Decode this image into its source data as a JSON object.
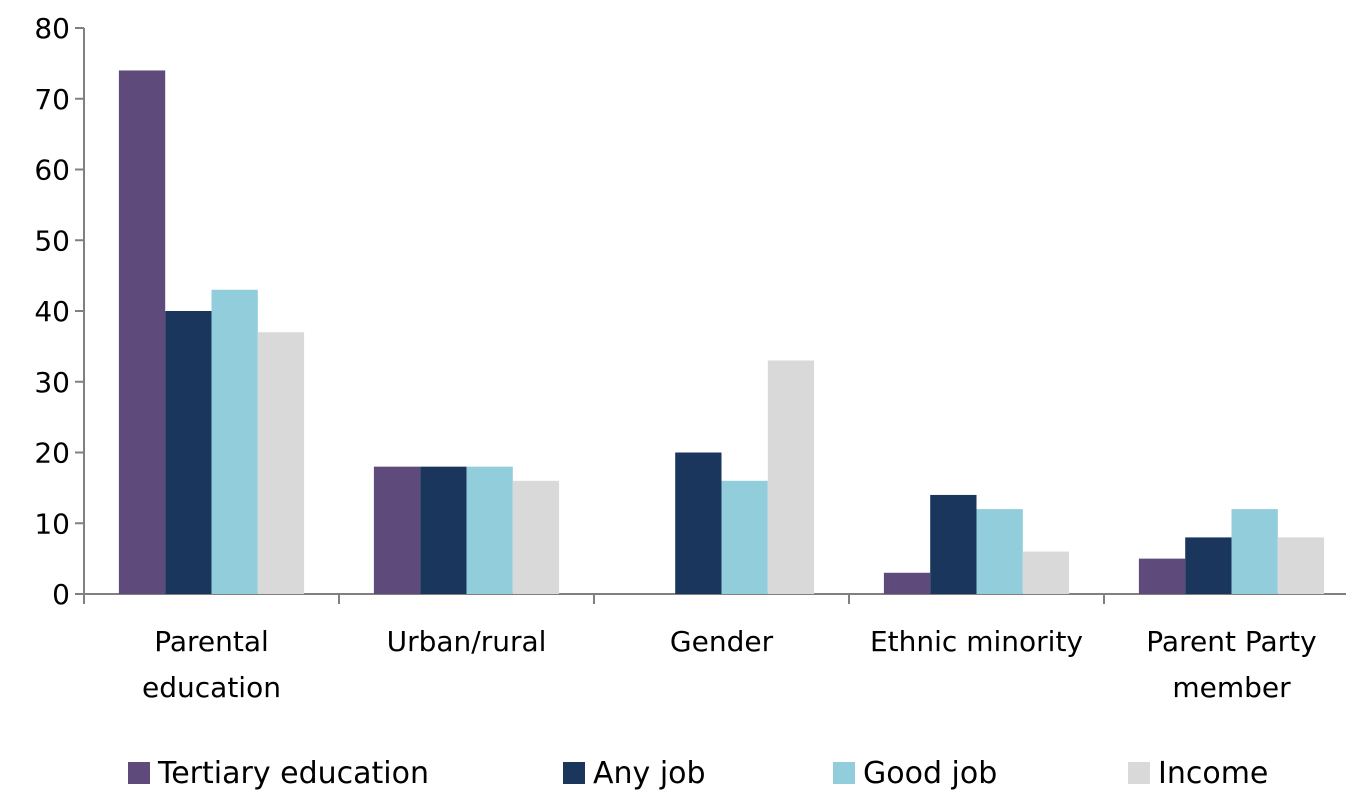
{
  "chart_data": {
    "type": "bar",
    "title": "",
    "xlabel": "",
    "ylabel": "",
    "ylim": [
      0,
      80
    ],
    "yticks": [
      "0",
      "10",
      "20",
      "30",
      "40",
      "50",
      "60",
      "70",
      "80"
    ],
    "grid": false,
    "legend_position": "bottom",
    "categories": [
      [
        "Parental",
        "education"
      ],
      [
        "Urban/rural"
      ],
      [
        "Gender"
      ],
      [
        "Ethnic minority"
      ],
      [
        "Parent Party",
        "member"
      ]
    ],
    "series": [
      {
        "name": "Tertiary education",
        "color": "#5f4b7b",
        "values": [
          74,
          18,
          0,
          3,
          5
        ]
      },
      {
        "name": "Any job",
        "color": "#1b365d",
        "values": [
          40,
          18,
          20,
          14,
          8
        ]
      },
      {
        "name": "Good job",
        "color": "#92cddc",
        "values": [
          43,
          18,
          16,
          12,
          12
        ]
      },
      {
        "name": "Income",
        "color": "#d9d9d9",
        "values": [
          37,
          16,
          33,
          6,
          8
        ]
      }
    ]
  }
}
